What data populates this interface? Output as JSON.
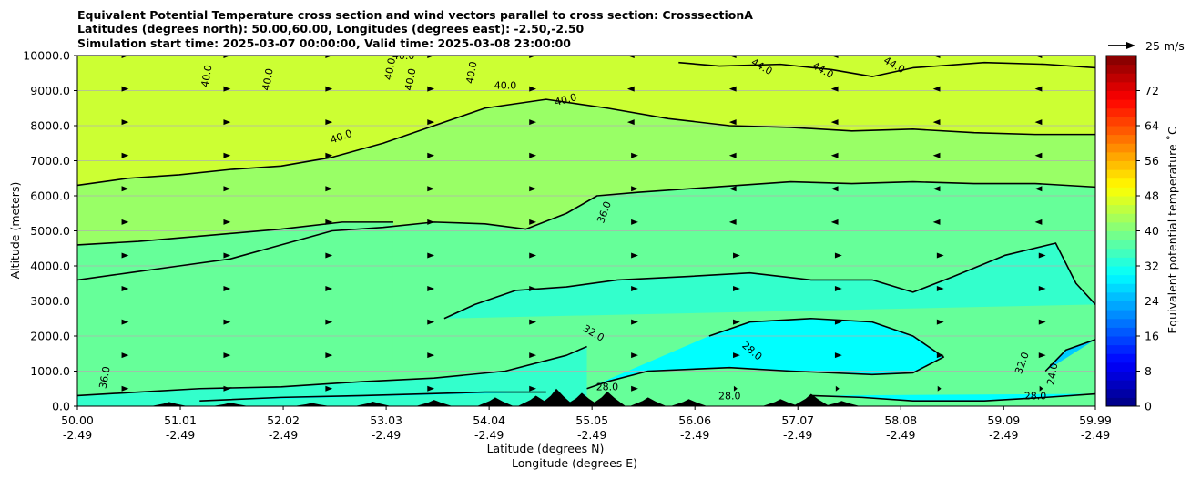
{
  "chart_data": {
    "type": "heatmap",
    "title_lines": [
      "Equivalent Potential Temperature cross section and wind vectors parallel to cross section: CrosssectionA",
      "Latitudes (degrees north): 50.00,60.00, Longitudes (degrees east): -2.50,-2.50",
      "Simulation start time: 2025-03-07 00:00:00, Valid time: 2025-03-08 23:00:00"
    ],
    "ylabel": "Altitude (meters)",
    "xlabel": "Latitude (degrees N)",
    "xlabel2": "Longitude (degrees E)",
    "ylim": [
      0,
      10000
    ],
    "xlim": [
      50.0,
      59.99
    ],
    "y_ticks": [
      "0.0",
      "1000.0",
      "2000.0",
      "3000.0",
      "4000.0",
      "5000.0",
      "6000.0",
      "7000.0",
      "8000.0",
      "9000.0",
      "10000.0"
    ],
    "x_tick_values": [
      50.0,
      51.01,
      52.02,
      53.03,
      54.04,
      55.05,
      56.06,
      57.07,
      58.08,
      59.09,
      59.99
    ],
    "x_ticks_lat": [
      "50.00",
      "51.01",
      "52.02",
      "53.03",
      "54.04",
      "55.05",
      "56.06",
      "57.07",
      "58.08",
      "59.09",
      "59.99"
    ],
    "x_ticks_lon": [
      "-2.49",
      "-2.49",
      "-2.49",
      "-2.49",
      "-2.49",
      "-2.49",
      "-2.49",
      "-2.49",
      "-2.49",
      "-2.49",
      "-2.49"
    ],
    "grid": "horizontal",
    "colorbar": {
      "label": "Equivalent potential temperature  ˚C",
      "range": [
        0,
        80
      ],
      "ticks": [
        "0",
        "8",
        "16",
        "24",
        "32",
        "40",
        "48",
        "56",
        "64",
        "72"
      ],
      "colormap": "jet"
    },
    "wind_key": {
      "label": "25 m/s"
    },
    "contour_labels": [
      "40.0",
      "40.0",
      "40.0",
      "40.0",
      "40.0",
      "40.0",
      "40.0",
      "40.0",
      "40.0",
      "44.0",
      "44.0",
      "44.0",
      "36.0",
      "36.0",
      "32.0",
      "32.0",
      "28.0",
      "28.0",
      "28.0",
      "28.0",
      "24.0"
    ],
    "contour_levels": [
      24,
      28,
      32,
      36,
      40,
      44
    ],
    "contours": [
      {
        "level": 44,
        "points": [
          [
            55.9,
            9800
          ],
          [
            56.3,
            9700
          ],
          [
            56.9,
            9750
          ],
          [
            57.4,
            9600
          ],
          [
            57.8,
            9400
          ],
          [
            58.2,
            9650
          ],
          [
            58.9,
            9800
          ],
          [
            59.5,
            9750
          ],
          [
            59.99,
            9650
          ]
        ]
      },
      {
        "level": 40,
        "points": [
          [
            50.0,
            6300
          ],
          [
            50.5,
            6500
          ],
          [
            51.0,
            6600
          ],
          [
            51.5,
            6750
          ],
          [
            52.0,
            6850
          ],
          [
            52.5,
            7100
          ],
          [
            53.0,
            7500
          ],
          [
            53.5,
            8000
          ],
          [
            54.0,
            8500
          ],
          [
            54.6,
            8750
          ],
          [
            55.2,
            8500
          ],
          [
            55.8,
            8200
          ],
          [
            56.4,
            8000
          ],
          [
            57.0,
            7950
          ],
          [
            57.6,
            7850
          ],
          [
            58.2,
            7900
          ],
          [
            58.8,
            7800
          ],
          [
            59.4,
            7750
          ],
          [
            59.99,
            7750
          ]
        ]
      },
      {
        "level": 36,
        "points": [
          [
            50.0,
            3600
          ],
          [
            50.5,
            3800
          ],
          [
            51.0,
            4000
          ],
          [
            51.5,
            4200
          ],
          [
            52.0,
            4600
          ],
          [
            52.5,
            5000
          ],
          [
            53.0,
            5100
          ],
          [
            53.5,
            5250
          ],
          [
            54.0,
            5200
          ],
          [
            54.4,
            5050
          ],
          [
            54.8,
            5500
          ],
          [
            55.1,
            6000
          ],
          [
            55.5,
            6100
          ],
          [
            56.0,
            6200
          ],
          [
            56.5,
            6300
          ],
          [
            57.0,
            6400
          ],
          [
            57.6,
            6350
          ],
          [
            58.2,
            6400
          ],
          [
            58.8,
            6350
          ],
          [
            59.4,
            6350
          ],
          [
            59.99,
            6250
          ]
        ]
      },
      {
        "level": 36,
        "points": [
          [
            50.0,
            4600
          ],
          [
            50.6,
            4700
          ],
          [
            51.2,
            4850
          ],
          [
            52.0,
            5050
          ],
          [
            52.6,
            5250
          ],
          [
            53.1,
            5250
          ]
        ]
      },
      {
        "level": 32,
        "points": [
          [
            53.6,
            2500
          ],
          [
            53.9,
            2900
          ],
          [
            54.3,
            3300
          ],
          [
            54.8,
            3400
          ],
          [
            55.3,
            3600
          ],
          [
            56.0,
            3700
          ],
          [
            56.6,
            3800
          ],
          [
            57.2,
            3600
          ],
          [
            57.8,
            3600
          ],
          [
            58.2,
            3250
          ],
          [
            58.6,
            3700
          ],
          [
            59.1,
            4300
          ],
          [
            59.6,
            4650
          ],
          [
            59.8,
            3500
          ],
          [
            59.99,
            2900
          ]
        ]
      },
      {
        "level": 32,
        "points": [
          [
            50.0,
            300
          ],
          [
            50.6,
            400
          ],
          [
            51.2,
            500
          ],
          [
            52.0,
            550
          ],
          [
            52.8,
            700
          ],
          [
            53.5,
            800
          ],
          [
            54.2,
            1000
          ],
          [
            54.8,
            1450
          ],
          [
            55.0,
            1700
          ]
        ]
      },
      {
        "level": 28,
        "points": [
          [
            56.2,
            2000
          ],
          [
            56.6,
            2400
          ],
          [
            57.2,
            2500
          ],
          [
            57.8,
            2400
          ],
          [
            58.2,
            2000
          ],
          [
            58.5,
            1400
          ],
          [
            58.2,
            950
          ],
          [
            57.8,
            900
          ],
          [
            57.0,
            1000
          ],
          [
            56.4,
            1100
          ],
          [
            55.6,
            1000
          ],
          [
            55.2,
            700
          ],
          [
            55.0,
            500
          ]
        ]
      },
      {
        "level": 28,
        "points": [
          [
            51.2,
            150
          ],
          [
            52.0,
            250
          ],
          [
            52.8,
            300
          ],
          [
            53.4,
            350
          ],
          [
            54.0,
            400
          ],
          [
            54.6,
            400
          ]
        ]
      },
      {
        "level": 28,
        "points": [
          [
            57.2,
            300
          ],
          [
            57.7,
            250
          ],
          [
            58.2,
            150
          ],
          [
            58.9,
            150
          ],
          [
            59.5,
            250
          ],
          [
            59.99,
            350
          ]
        ]
      },
      {
        "level": 24,
        "points": [
          [
            59.5,
            1000
          ],
          [
            59.7,
            1600
          ],
          [
            59.99,
            1900
          ]
        ]
      }
    ],
    "terrain_peaks": [
      {
        "x": 50.9,
        "h": 120
      },
      {
        "x": 51.5,
        "h": 100
      },
      {
        "x": 52.3,
        "h": 90
      },
      {
        "x": 52.9,
        "h": 130
      },
      {
        "x": 53.5,
        "h": 180
      },
      {
        "x": 54.1,
        "h": 250
      },
      {
        "x": 54.5,
        "h": 300
      },
      {
        "x": 54.7,
        "h": 500
      },
      {
        "x": 54.95,
        "h": 380
      },
      {
        "x": 55.2,
        "h": 420
      },
      {
        "x": 55.6,
        "h": 250
      },
      {
        "x": 56.0,
        "h": 200
      },
      {
        "x": 56.9,
        "h": 200
      },
      {
        "x": 57.2,
        "h": 350
      },
      {
        "x": 57.5,
        "h": 150
      }
    ]
  }
}
